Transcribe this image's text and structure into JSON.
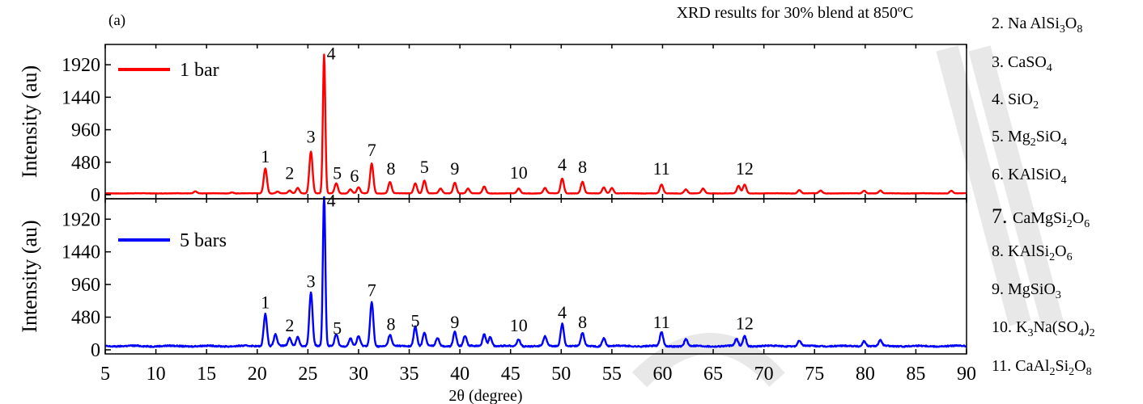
{
  "chart_data": {
    "type": "line",
    "title": "XRD  results for 30%  blend at 850ºC",
    "panel_label": "(a)",
    "xlabel": "2θ (degree)",
    "xlim": [
      5,
      90
    ],
    "xticks": [
      5,
      10,
      15,
      20,
      25,
      30,
      35,
      40,
      45,
      50,
      55,
      60,
      65,
      70,
      75,
      80,
      85,
      90
    ],
    "panels": [
      {
        "series_name": "1 bar",
        "color": "#ff0000",
        "ylabel": "Intensity (au)",
        "ylim": [
          -60,
          2220
        ],
        "yticks": [
          0,
          480,
          960,
          1440,
          1920
        ],
        "baseline": 20,
        "peaks": [
          [
            13.9,
            30
          ],
          [
            17.5,
            15
          ],
          [
            20.8,
            370
          ],
          [
            22.0,
            25
          ],
          [
            23.2,
            40
          ],
          [
            24.0,
            80
          ],
          [
            25.3,
            620
          ],
          [
            26.6,
            2050
          ],
          [
            27.8,
            150
          ],
          [
            29.2,
            60
          ],
          [
            30.0,
            90
          ],
          [
            31.3,
            440
          ],
          [
            33.1,
            170
          ],
          [
            35.6,
            150
          ],
          [
            36.5,
            190
          ],
          [
            38.1,
            70
          ],
          [
            39.5,
            160
          ],
          [
            40.8,
            70
          ],
          [
            42.4,
            100
          ],
          [
            45.8,
            70
          ],
          [
            48.4,
            80
          ],
          [
            50.1,
            220
          ],
          [
            52.1,
            170
          ],
          [
            54.2,
            90
          ],
          [
            55.0,
            80
          ],
          [
            59.9,
            130
          ],
          [
            62.3,
            60
          ],
          [
            64.0,
            70
          ],
          [
            67.5,
            110
          ],
          [
            68.1,
            130
          ],
          [
            73.5,
            50
          ],
          [
            75.6,
            40
          ],
          [
            79.9,
            40
          ],
          [
            81.5,
            40
          ],
          [
            88.5,
            40
          ]
        ],
        "labels": [
          {
            "text": "1",
            "x": 20.8,
            "y": 480
          },
          {
            "text": "2",
            "x": 23.2,
            "y": 230
          },
          {
            "text": "3",
            "x": 25.3,
            "y": 770
          },
          {
            "text": "4",
            "x": 27.3,
            "y": 2000
          },
          {
            "text": "5",
            "x": 27.9,
            "y": 230
          },
          {
            "text": "6",
            "x": 29.6,
            "y": 190
          },
          {
            "text": "7",
            "x": 31.3,
            "y": 570
          },
          {
            "text": "8",
            "x": 33.2,
            "y": 300
          },
          {
            "text": "5",
            "x": 36.5,
            "y": 320
          },
          {
            "text": "9",
            "x": 39.5,
            "y": 300
          },
          {
            "text": "10",
            "x": 45.8,
            "y": 240
          },
          {
            "text": "4",
            "x": 50.1,
            "y": 360
          },
          {
            "text": "8",
            "x": 52.1,
            "y": 320
          },
          {
            "text": "11",
            "x": 59.9,
            "y": 300
          },
          {
            "text": "12",
            "x": 68.1,
            "y": 300
          }
        ]
      },
      {
        "series_name": "5 bars",
        "color": "#0000ff",
        "ylabel": "Intensity (au)",
        "ylim": [
          -60,
          2220
        ],
        "yticks": [
          0,
          480,
          960,
          1440,
          1920
        ],
        "baseline": 55,
        "peaks": [
          [
            20.8,
            480
          ],
          [
            21.8,
            170
          ],
          [
            23.2,
            120
          ],
          [
            24.0,
            140
          ],
          [
            25.3,
            790
          ],
          [
            26.6,
            2250
          ],
          [
            27.8,
            180
          ],
          [
            29.2,
            110
          ],
          [
            30.0,
            140
          ],
          [
            31.3,
            650
          ],
          [
            33.1,
            160
          ],
          [
            35.6,
            290
          ],
          [
            36.5,
            200
          ],
          [
            37.8,
            120
          ],
          [
            39.5,
            210
          ],
          [
            40.5,
            150
          ],
          [
            42.4,
            180
          ],
          [
            43.0,
            140
          ],
          [
            45.8,
            100
          ],
          [
            48.4,
            140
          ],
          [
            50.1,
            330
          ],
          [
            52.1,
            190
          ],
          [
            54.2,
            120
          ],
          [
            59.9,
            200
          ],
          [
            62.3,
            100
          ],
          [
            67.3,
            100
          ],
          [
            68.1,
            150
          ],
          [
            73.5,
            80
          ],
          [
            79.9,
            80
          ],
          [
            81.5,
            80
          ]
        ],
        "labels": [
          {
            "text": "1",
            "x": 20.8,
            "y": 610
          },
          {
            "text": "2",
            "x": 23.2,
            "y": 270
          },
          {
            "text": "3",
            "x": 25.3,
            "y": 920
          },
          {
            "text": "4",
            "x": 27.3,
            "y": 2110
          },
          {
            "text": "5",
            "x": 27.9,
            "y": 230
          },
          {
            "text": "7",
            "x": 31.3,
            "y": 790
          },
          {
            "text": "8",
            "x": 33.2,
            "y": 290
          },
          {
            "text": "5",
            "x": 35.6,
            "y": 340
          },
          {
            "text": "9",
            "x": 39.5,
            "y": 320
          },
          {
            "text": "10",
            "x": 45.8,
            "y": 270
          },
          {
            "text": "4",
            "x": 50.1,
            "y": 460
          },
          {
            "text": "8",
            "x": 52.1,
            "y": 320
          },
          {
            "text": "11",
            "x": 59.9,
            "y": 320
          },
          {
            "text": "12",
            "x": 68.1,
            "y": 300
          }
        ]
      }
    ]
  },
  "phase_legend": [
    {
      "name": "2. Na AlSi",
      "parts": [
        [
          "Na AlSi",
          ""
        ],
        [
          "3",
          "sub"
        ],
        [
          "O",
          ""
        ],
        [
          "8",
          "sub"
        ]
      ]
    },
    {
      "name": "3. CaSO4",
      "parts": [
        [
          "3.  CaSO",
          ""
        ],
        [
          "4",
          "sub"
        ]
      ]
    },
    {
      "name": "4. SiO2",
      "parts": [
        [
          "4. SiO",
          ""
        ],
        [
          "2",
          "sub"
        ]
      ]
    },
    {
      "name": "5. Mg2SiO4",
      "parts": [
        [
          "5. Mg",
          ""
        ],
        [
          "2",
          "sub"
        ],
        [
          "SiO",
          ""
        ],
        [
          "4",
          "sub"
        ]
      ]
    },
    {
      "name": "6. KAlSiO4",
      "parts": [
        [
          "6. KAlSiO",
          ""
        ],
        [
          "4",
          "sub"
        ]
      ]
    },
    {
      "name": "7. CaMgSi2O6",
      "parts": [
        [
          "7. ",
          "big"
        ],
        [
          "CaMgSi",
          ""
        ],
        [
          "2",
          "sub"
        ],
        [
          "O",
          ""
        ],
        [
          "6",
          "sub"
        ]
      ]
    },
    {
      "name": "8. KAlSi2O6",
      "parts": [
        [
          "8. KAlSi",
          ""
        ],
        [
          "2",
          "sub"
        ],
        [
          "O",
          ""
        ],
        [
          "6",
          "sub"
        ]
      ]
    },
    {
      "name": "9. MgSiO3",
      "parts": [
        [
          "9. MgSiO",
          ""
        ],
        [
          "3",
          "sub"
        ]
      ]
    },
    {
      "name": "10. K3Na(SO4)2",
      "parts": [
        [
          "10. K",
          ""
        ],
        [
          "3",
          "sub"
        ],
        [
          "Na(SO",
          ""
        ],
        [
          "4",
          "sub"
        ],
        [
          ")",
          ""
        ],
        [
          "2",
          "sub"
        ]
      ]
    },
    {
      "name": "11. CaAl2Si2O8",
      "parts": [
        [
          "11. CaAl",
          ""
        ],
        [
          "2",
          "sub"
        ],
        [
          "Si",
          ""
        ],
        [
          "2",
          "sub"
        ],
        [
          "O",
          ""
        ],
        [
          "8",
          "sub"
        ]
      ]
    }
  ],
  "colors": {
    "axis": "#000000",
    "watermark": "#e8e8e8"
  }
}
